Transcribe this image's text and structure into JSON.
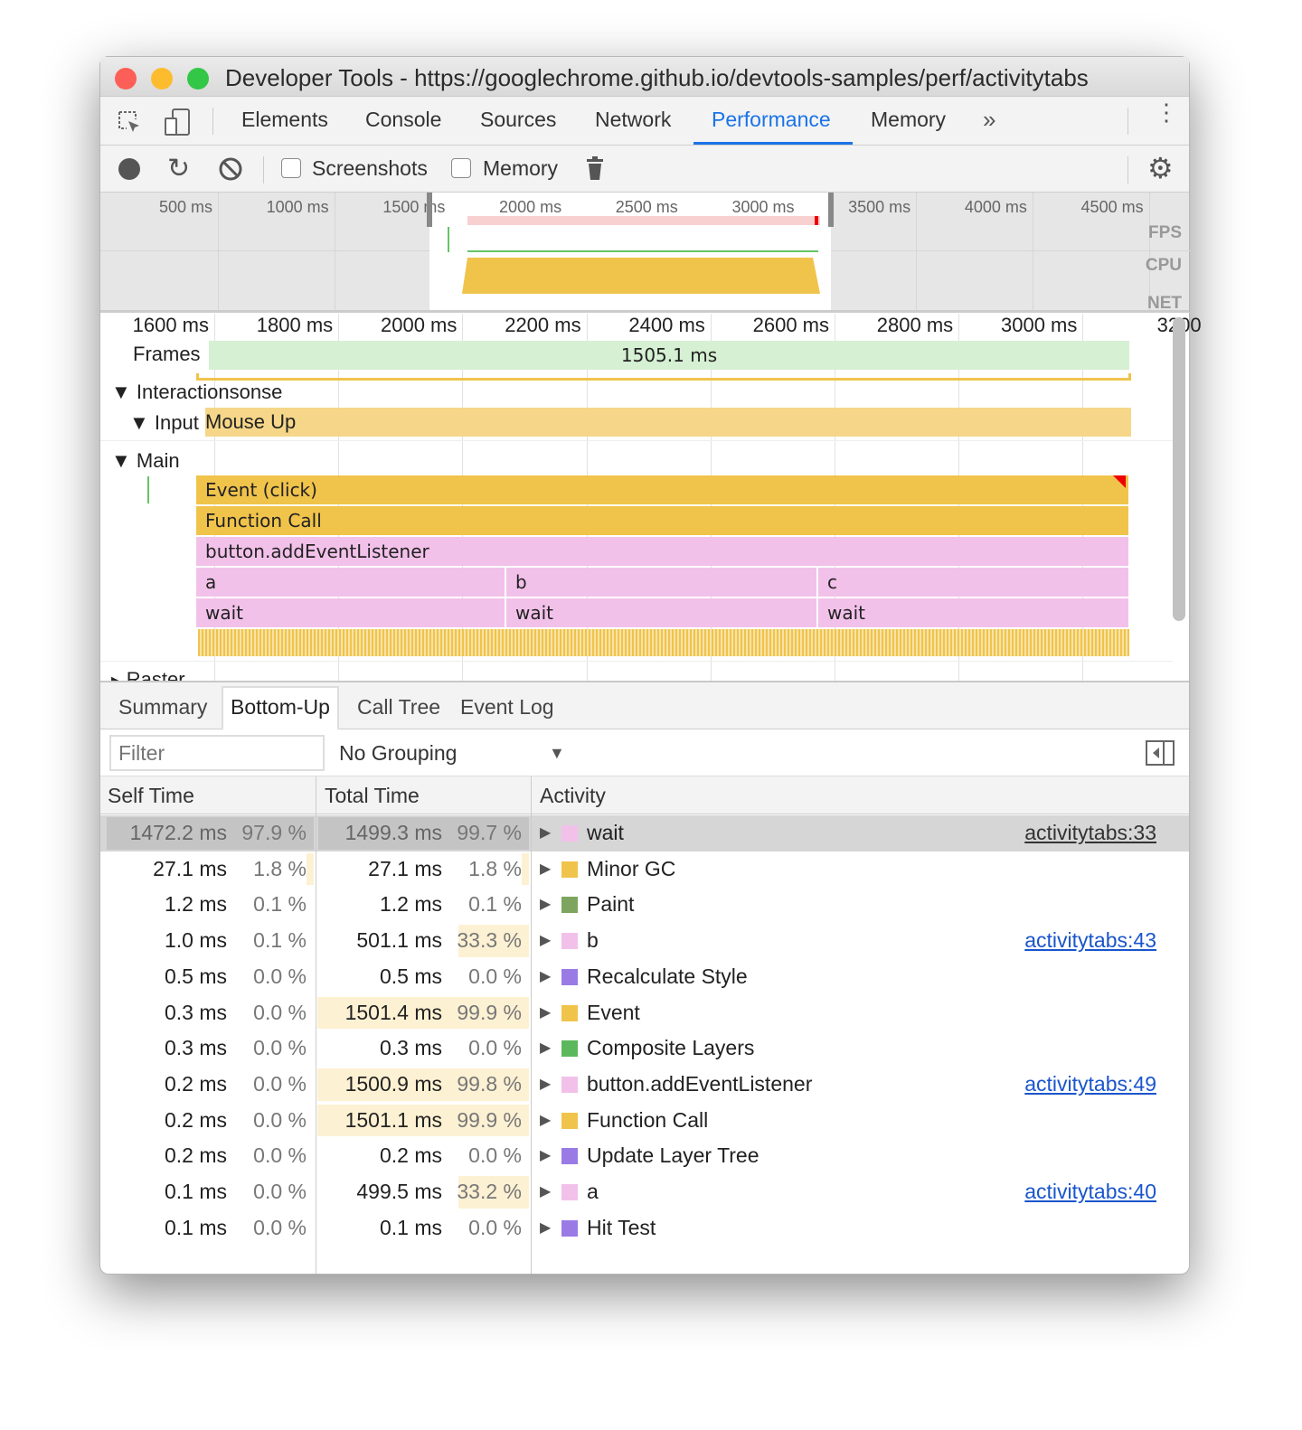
{
  "window": {
    "title": "Developer Tools - https://googlechrome.github.io/devtools-samples/perf/activitytabs"
  },
  "tabs": [
    {
      "label": "Elements"
    },
    {
      "label": "Console"
    },
    {
      "label": "Sources"
    },
    {
      "label": "Network"
    },
    {
      "label": "Performance",
      "active": true
    },
    {
      "label": "Memory"
    }
  ],
  "toolbar": {
    "screenshots": "Screenshots",
    "memory": "Memory",
    "screenshots_checked": false,
    "memory_checked": false
  },
  "overview": {
    "ticks": [
      "500 ms",
      "1000 ms",
      "1500 ms",
      "2000 ms",
      "2500 ms",
      "3000 ms",
      "3500 ms",
      "4000 ms",
      "4500 ms"
    ],
    "tracks": [
      "FPS",
      "CPU",
      "NET"
    ]
  },
  "ruler": [
    "1600 ms",
    "1800 ms",
    "2000 ms",
    "2200 ms",
    "2400 ms",
    "2600 ms",
    "2800 ms",
    "3000 ms",
    "3200"
  ],
  "flame": {
    "frames_label": "Frames",
    "frame_duration": "1505.1 ms",
    "interactions": "Interactions",
    "interactions_suffix": "onse",
    "input": "Input",
    "mouse_up": "Mouse Up",
    "main": "Main",
    "event": "Event (click)",
    "function_call": "Function Call",
    "listener": "button.addEventListener",
    "a": "a",
    "b": "b",
    "c": "c",
    "wait": "wait",
    "raster": "Raster"
  },
  "colors": {
    "scripting": "#f0c34b",
    "user": "#f2c1ea",
    "frame": "#d5f0d2",
    "accent": "#1a73e8"
  },
  "bottom_tabs": [
    {
      "label": "Summary"
    },
    {
      "label": "Bottom-Up",
      "active": true
    },
    {
      "label": "Call Tree"
    },
    {
      "label": "Event Log"
    }
  ],
  "filter": {
    "placeholder": "Filter",
    "grouping": "No Grouping"
  },
  "table": {
    "headers": {
      "self": "Self Time",
      "total": "Total Time",
      "activity": "Activity"
    },
    "rows": [
      {
        "self": "1472.2 ms",
        "self_pct": "97.9 %",
        "total": "1499.3 ms",
        "total_pct": "99.7 %",
        "activity": "wait",
        "color": "#f2c1ea",
        "link": "activitytabs:33",
        "selected": true
      },
      {
        "self": "27.1 ms",
        "self_pct": "1.8 %",
        "total": "27.1 ms",
        "total_pct": "1.8 %",
        "activity": "Minor GC",
        "color": "#f0c34b",
        "link": ""
      },
      {
        "self": "1.2 ms",
        "self_pct": "0.1 %",
        "total": "1.2 ms",
        "total_pct": "0.1 %",
        "activity": "Paint",
        "color": "#7ea55f",
        "link": ""
      },
      {
        "self": "1.0 ms",
        "self_pct": "0.1 %",
        "total": "501.1 ms",
        "total_pct": "33.3 %",
        "activity": "b",
        "color": "#f2c1ea",
        "link": "activitytabs:43"
      },
      {
        "self": "0.5 ms",
        "self_pct": "0.0 %",
        "total": "0.5 ms",
        "total_pct": "0.0 %",
        "activity": "Recalculate Style",
        "color": "#9a7be6",
        "link": ""
      },
      {
        "self": "0.3 ms",
        "self_pct": "0.0 %",
        "total": "1501.4 ms",
        "total_pct": "99.9 %",
        "activity": "Event",
        "color": "#f0c34b",
        "link": ""
      },
      {
        "self": "0.3 ms",
        "self_pct": "0.0 %",
        "total": "0.3 ms",
        "total_pct": "0.0 %",
        "activity": "Composite Layers",
        "color": "#5cb85c",
        "link": ""
      },
      {
        "self": "0.2 ms",
        "self_pct": "0.0 %",
        "total": "1500.9 ms",
        "total_pct": "99.8 %",
        "activity": "button.addEventListener",
        "color": "#f2c1ea",
        "link": "activitytabs:49"
      },
      {
        "self": "0.2 ms",
        "self_pct": "0.0 %",
        "total": "1501.1 ms",
        "total_pct": "99.9 %",
        "activity": "Function Call",
        "color": "#f0c34b",
        "link": ""
      },
      {
        "self": "0.2 ms",
        "self_pct": "0.0 %",
        "total": "0.2 ms",
        "total_pct": "0.0 %",
        "activity": "Update Layer Tree",
        "color": "#9a7be6",
        "link": ""
      },
      {
        "self": "0.1 ms",
        "self_pct": "0.0 %",
        "total": "499.5 ms",
        "total_pct": "33.2 %",
        "activity": "a",
        "color": "#f2c1ea",
        "link": "activitytabs:40"
      },
      {
        "self": "0.1 ms",
        "self_pct": "0.0 %",
        "total": "0.1 ms",
        "total_pct": "0.0 %",
        "activity": "Hit Test",
        "color": "#9a7be6",
        "link": ""
      }
    ]
  }
}
